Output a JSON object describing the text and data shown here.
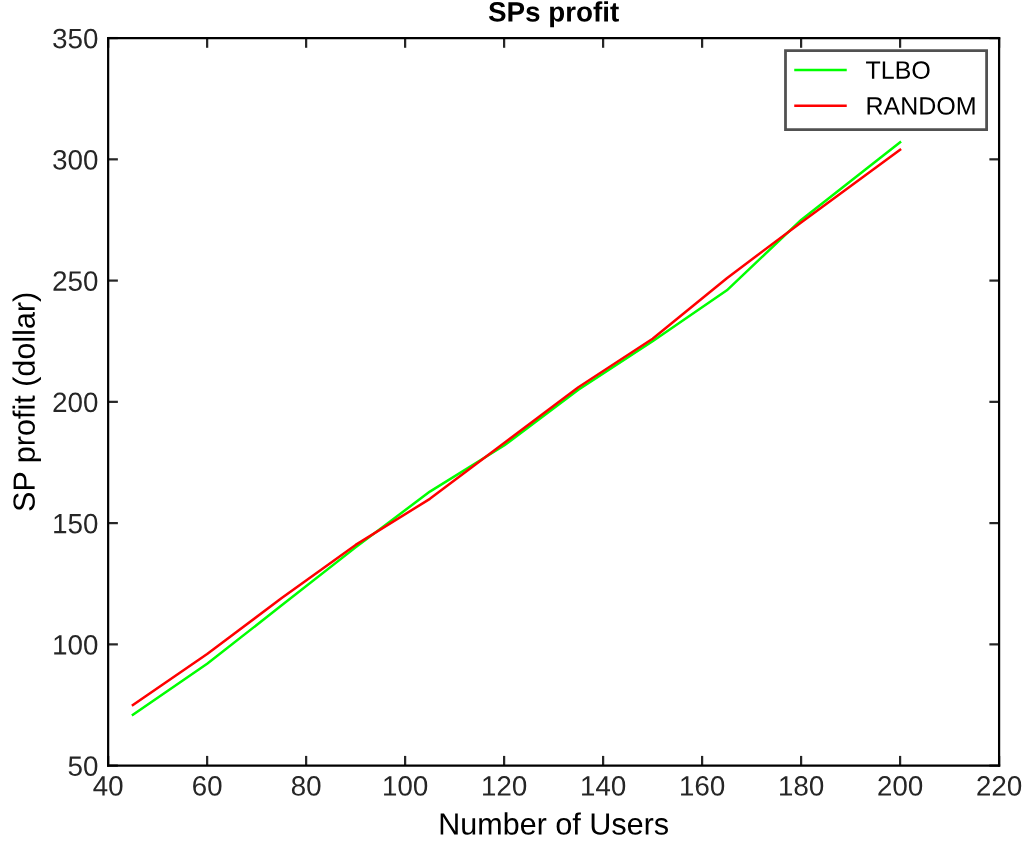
{
  "chart_data": {
    "type": "line",
    "title": "SPs profit",
    "xlabel": "Number of Users",
    "ylabel": "SP profit (dollar)",
    "x": [
      45,
      60,
      75,
      90,
      105,
      120,
      135,
      150,
      165,
      180,
      200
    ],
    "series": [
      {
        "name": "TLBO",
        "color": "#00ff00",
        "values": [
          71,
          92,
          116,
          140,
          163,
          182,
          205,
          225,
          246,
          275,
          307
        ]
      },
      {
        "name": "RANDOM",
        "color": "#ff0000",
        "values": [
          75,
          96,
          119,
          141,
          160,
          183,
          206,
          226,
          251,
          274,
          304
        ]
      }
    ],
    "xlim": [
      40,
      220
    ],
    "xticks": [
      40,
      60,
      80,
      100,
      120,
      140,
      160,
      180,
      200,
      220
    ],
    "ylim": [
      50,
      350
    ],
    "yticks": [
      50,
      100,
      150,
      200,
      250,
      300,
      350
    ],
    "grid": false,
    "legend": "top right",
    "marker": "none",
    "line_style": "solid"
  }
}
